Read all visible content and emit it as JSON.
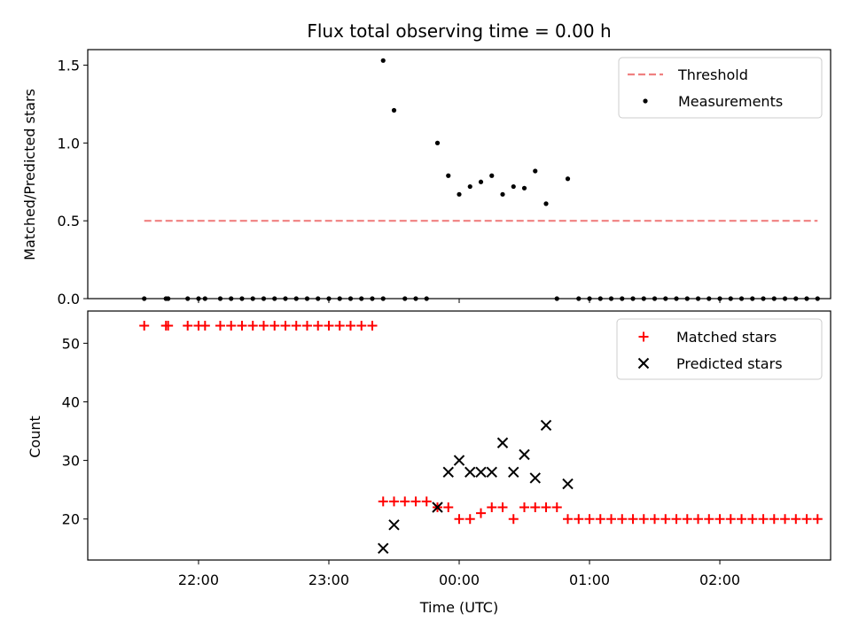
{
  "chart_data": [
    {
      "type": "scatter",
      "title": "Flux total observing time = 0.00 h",
      "ylabel": "Matched/Predicted stars",
      "xlabel": "",
      "ylim": [
        0,
        1.6
      ],
      "xlim": [
        "21:09",
        "02:51"
      ],
      "yticks": [
        "0.0",
        "0.5",
        "1.0",
        "1.5"
      ],
      "grid": false,
      "legend_position": "top-right",
      "threshold": {
        "name": "Threshold",
        "value": 0.5,
        "x_range": [
          "21:35",
          "02:45"
        ],
        "color": "#f08080"
      },
      "series": [
        {
          "name": "Measurements",
          "color": "#000000",
          "points": [
            [
              "21:35",
              0
            ],
            [
              "21:45",
              0
            ],
            [
              "21:46",
              0
            ],
            [
              "21:55",
              0
            ],
            [
              "22:00",
              0
            ],
            [
              "22:03",
              0
            ],
            [
              "22:10",
              0
            ],
            [
              "22:15",
              0
            ],
            [
              "22:20",
              0
            ],
            [
              "22:25",
              0
            ],
            [
              "22:30",
              0
            ],
            [
              "22:35",
              0
            ],
            [
              "22:40",
              0
            ],
            [
              "22:45",
              0
            ],
            [
              "22:50",
              0
            ],
            [
              "22:55",
              0
            ],
            [
              "23:00",
              0
            ],
            [
              "23:05",
              0
            ],
            [
              "23:10",
              0
            ],
            [
              "23:15",
              0
            ],
            [
              "23:20",
              0
            ],
            [
              "23:25",
              0
            ],
            [
              "23:25",
              1.53
            ],
            [
              "23:30",
              1.21
            ],
            [
              "23:35",
              0
            ],
            [
              "23:40",
              0
            ],
            [
              "23:45",
              0
            ],
            [
              "23:50",
              1.0
            ],
            [
              "23:55",
              0.79
            ],
            [
              "00:00",
              0.67
            ],
            [
              "00:05",
              0.72
            ],
            [
              "00:10",
              0.75
            ],
            [
              "00:15",
              0.79
            ],
            [
              "00:20",
              0.67
            ],
            [
              "00:25",
              0.72
            ],
            [
              "00:30",
              0.71
            ],
            [
              "00:35",
              0.82
            ],
            [
              "00:40",
              0.61
            ],
            [
              "00:45",
              0
            ],
            [
              "00:50",
              0.77
            ],
            [
              "00:55",
              0
            ],
            [
              "01:00",
              0
            ],
            [
              "01:05",
              0
            ],
            [
              "01:10",
              0
            ],
            [
              "01:15",
              0
            ],
            [
              "01:20",
              0
            ],
            [
              "01:25",
              0
            ],
            [
              "01:30",
              0
            ],
            [
              "01:35",
              0
            ],
            [
              "01:40",
              0
            ],
            [
              "01:45",
              0
            ],
            [
              "01:50",
              0
            ],
            [
              "01:55",
              0
            ],
            [
              "02:00",
              0
            ],
            [
              "02:05",
              0
            ],
            [
              "02:10",
              0
            ],
            [
              "02:15",
              0
            ],
            [
              "02:20",
              0
            ],
            [
              "02:25",
              0
            ],
            [
              "02:30",
              0
            ],
            [
              "02:35",
              0
            ],
            [
              "02:40",
              0
            ],
            [
              "02:45",
              0
            ]
          ]
        }
      ]
    },
    {
      "type": "scatter",
      "title": "",
      "xlabel": "Time (UTC)",
      "ylabel": "Count",
      "ylim": [
        13,
        55.5
      ],
      "xlim": [
        "21:09",
        "02:51"
      ],
      "xticks": [
        "22:00",
        "23:00",
        "00:00",
        "01:00",
        "02:00"
      ],
      "yticks": [
        "20",
        "30",
        "40",
        "50"
      ],
      "grid": false,
      "legend_position": "top-right",
      "series": [
        {
          "name": "Matched stars",
          "marker": "plus",
          "color": "#ff0000",
          "points": [
            [
              "21:35",
              53
            ],
            [
              "21:45",
              53
            ],
            [
              "21:46",
              53
            ],
            [
              "21:55",
              53
            ],
            [
              "22:00",
              53
            ],
            [
              "22:03",
              53
            ],
            [
              "22:10",
              53
            ],
            [
              "22:15",
              53
            ],
            [
              "22:20",
              53
            ],
            [
              "22:25",
              53
            ],
            [
              "22:30",
              53
            ],
            [
              "22:35",
              53
            ],
            [
              "22:40",
              53
            ],
            [
              "22:45",
              53
            ],
            [
              "22:50",
              53
            ],
            [
              "22:55",
              53
            ],
            [
              "23:00",
              53
            ],
            [
              "23:05",
              53
            ],
            [
              "23:10",
              53
            ],
            [
              "23:15",
              53
            ],
            [
              "23:20",
              53
            ],
            [
              "23:25",
              23
            ],
            [
              "23:30",
              23
            ],
            [
              "23:35",
              23
            ],
            [
              "23:40",
              23
            ],
            [
              "23:45",
              23
            ],
            [
              "23:50",
              22
            ],
            [
              "23:55",
              22
            ],
            [
              "00:00",
              20
            ],
            [
              "00:05",
              20
            ],
            [
              "00:10",
              21
            ],
            [
              "00:15",
              22
            ],
            [
              "00:20",
              22
            ],
            [
              "00:25",
              20
            ],
            [
              "00:30",
              22
            ],
            [
              "00:35",
              22
            ],
            [
              "00:40",
              22
            ],
            [
              "00:45",
              22
            ],
            [
              "00:50",
              20
            ],
            [
              "00:55",
              20
            ],
            [
              "01:00",
              20
            ],
            [
              "01:05",
              20
            ],
            [
              "01:10",
              20
            ],
            [
              "01:15",
              20
            ],
            [
              "01:20",
              20
            ],
            [
              "01:25",
              20
            ],
            [
              "01:30",
              20
            ],
            [
              "01:35",
              20
            ],
            [
              "01:40",
              20
            ],
            [
              "01:45",
              20
            ],
            [
              "01:50",
              20
            ],
            [
              "01:55",
              20
            ],
            [
              "02:00",
              20
            ],
            [
              "02:05",
              20
            ],
            [
              "02:10",
              20
            ],
            [
              "02:15",
              20
            ],
            [
              "02:20",
              20
            ],
            [
              "02:25",
              20
            ],
            [
              "02:30",
              20
            ],
            [
              "02:35",
              20
            ],
            [
              "02:40",
              20
            ],
            [
              "02:45",
              20
            ]
          ]
        },
        {
          "name": "Predicted stars",
          "marker": "x",
          "color": "#000000",
          "points": [
            [
              "23:25",
              15
            ],
            [
              "23:30",
              19
            ],
            [
              "23:50",
              22
            ],
            [
              "23:55",
              28
            ],
            [
              "00:00",
              30
            ],
            [
              "00:05",
              28
            ],
            [
              "00:10",
              28
            ],
            [
              "00:15",
              28
            ],
            [
              "00:20",
              33
            ],
            [
              "00:25",
              28
            ],
            [
              "00:30",
              31
            ],
            [
              "00:35",
              27
            ],
            [
              "00:40",
              36
            ],
            [
              "00:50",
              26
            ]
          ]
        }
      ]
    }
  ]
}
